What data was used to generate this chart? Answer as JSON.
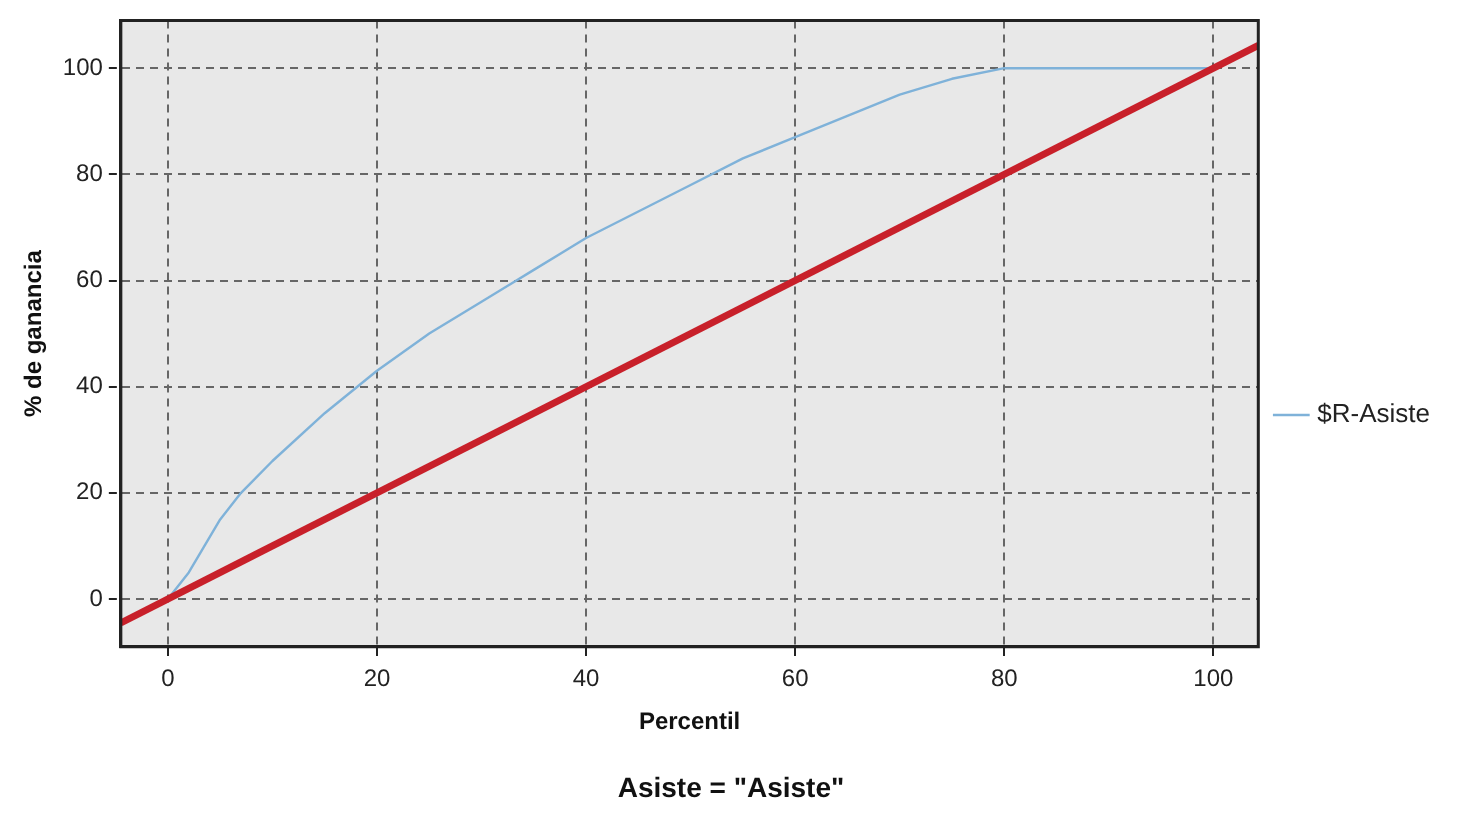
{
  "chart_data": {
    "type": "line",
    "title": "Asiste = \"Asiste\"",
    "xlabel": "Percentil",
    "ylabel": "% de ganancia",
    "xlim": [
      -4.5,
      104.3
    ],
    "xticks": [
      0,
      20,
      40,
      60,
      80,
      100
    ],
    "ylim": [
      -9,
      109
    ],
    "yticks": [
      0,
      20,
      40,
      60,
      80,
      100
    ],
    "grid": true,
    "legend": "right",
    "marker": "none",
    "line_style": "solid",
    "series": [
      {
        "name": "$R-Asiste",
        "color": "#7fb2d9",
        "x": [
          0,
          2,
          5,
          7,
          10,
          15,
          20,
          25,
          30,
          35,
          40,
          45,
          50,
          55,
          60,
          65,
          70,
          75,
          80,
          90,
          100
        ],
        "values": [
          0,
          5,
          15,
          20,
          26,
          35,
          43,
          50,
          56,
          62,
          68,
          73,
          78,
          83,
          87,
          91,
          95,
          98,
          100,
          100,
          100
        ]
      },
      {
        "color": "#c8202a",
        "x": [
          -4.5,
          104.3
        ],
        "values": [
          -4.5,
          104.3
        ]
      }
    ]
  }
}
